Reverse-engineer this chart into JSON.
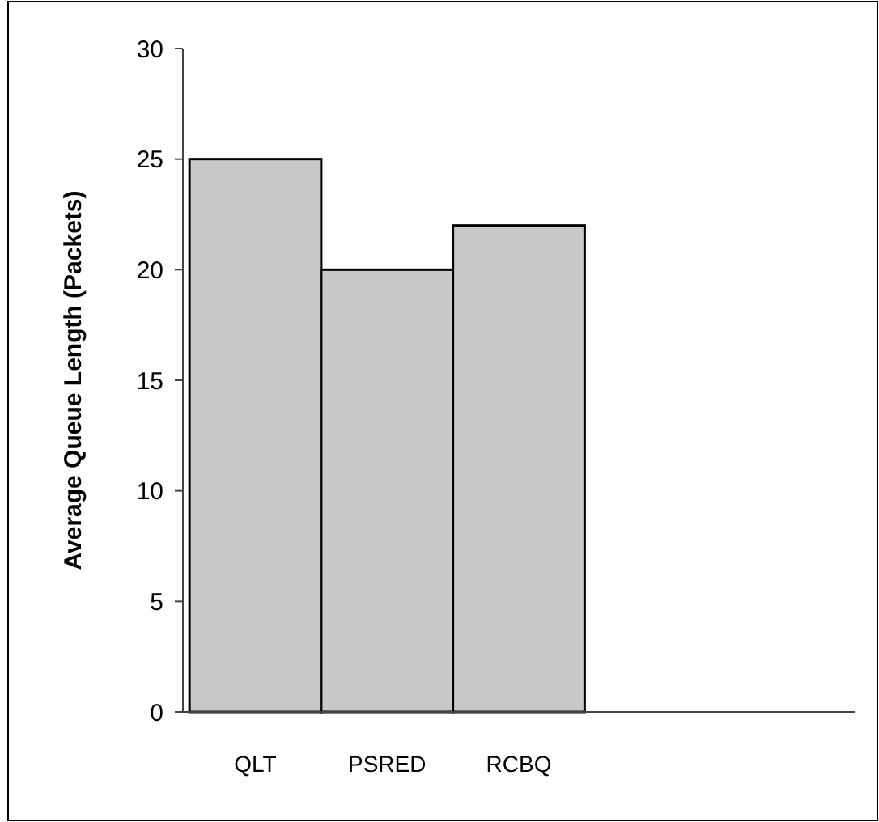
{
  "chart_data": {
    "type": "bar",
    "ylabel": "Average Queue Length (Packets)",
    "categories": [
      "QLT",
      "PSRED",
      "RCBQ",
      null,
      null
    ],
    "values": [
      25,
      20,
      22,
      null,
      null
    ],
    "color": "#c8c8c8",
    "ylim": [
      0,
      30
    ],
    "yticks": [
      0,
      5,
      10,
      15,
      20,
      25,
      30
    ],
    "grid": false
  }
}
